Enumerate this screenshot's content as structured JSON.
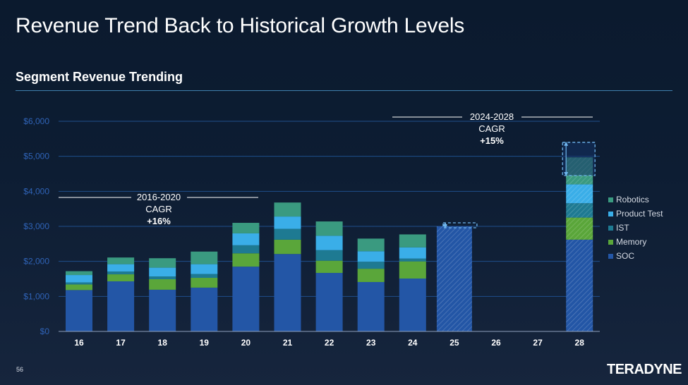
{
  "slide": {
    "title": "Revenue Trend Back to Historical Growth Levels",
    "subtitle": "Segment Revenue Trending",
    "page_number": "56",
    "logo": "TERADYNE"
  },
  "chart_data": {
    "type": "bar",
    "stacked": true,
    "title": "Segment Revenue Trending",
    "xlabel": "",
    "ylabel": "",
    "ylim": [
      0,
      6000
    ],
    "yticks": [
      0,
      1000,
      2000,
      3000,
      4000,
      5000,
      6000
    ],
    "ytick_labels": [
      "$0",
      "$1,000",
      "$2,000",
      "$3,000",
      "$4,000",
      "$5,000",
      "$6,000"
    ],
    "grid": true,
    "legend_position": "right",
    "categories": [
      "16",
      "17",
      "18",
      "19",
      "20",
      "21",
      "22",
      "23",
      "24",
      "25",
      "26",
      "27",
      "28"
    ],
    "series": [
      {
        "name": "SOC",
        "color": "#2356a6",
        "values": [
          1180,
          1430,
          1190,
          1250,
          1850,
          2210,
          1670,
          1410,
          1510,
          0,
          0,
          0,
          2620
        ]
      },
      {
        "name": "Memory",
        "color": "#5aa63a",
        "values": [
          160,
          200,
          300,
          280,
          380,
          410,
          350,
          380,
          490,
          0,
          0,
          0,
          630
        ]
      },
      {
        "name": "IST",
        "color": "#1e7a92",
        "values": [
          60,
          80,
          80,
          110,
          230,
          310,
          300,
          200,
          80,
          0,
          0,
          0,
          410
        ]
      },
      {
        "name": "Product Test",
        "color": "#3aaee8",
        "values": [
          210,
          210,
          250,
          280,
          340,
          350,
          410,
          300,
          320,
          0,
          0,
          0,
          540
        ]
      },
      {
        "name": "Robotics",
        "color": "#3a9a80",
        "values": [
          110,
          190,
          270,
          360,
          300,
          400,
          410,
          360,
          370,
          0,
          0,
          0,
          770
        ]
      }
    ],
    "total_only_bars": [
      {
        "category": "25",
        "value": 3000,
        "label": ""
      }
    ],
    "range_boxes": [
      {
        "category": "25",
        "low": 2960,
        "high": 3100
      },
      {
        "category": "28",
        "low": 4450,
        "high": 5400
      }
    ],
    "annotations": [
      {
        "period": "2016-2020",
        "label": "CAGR",
        "value": "+16%"
      },
      {
        "period": "2024-2028",
        "label": "CAGR",
        "value": "+15%"
      }
    ]
  }
}
